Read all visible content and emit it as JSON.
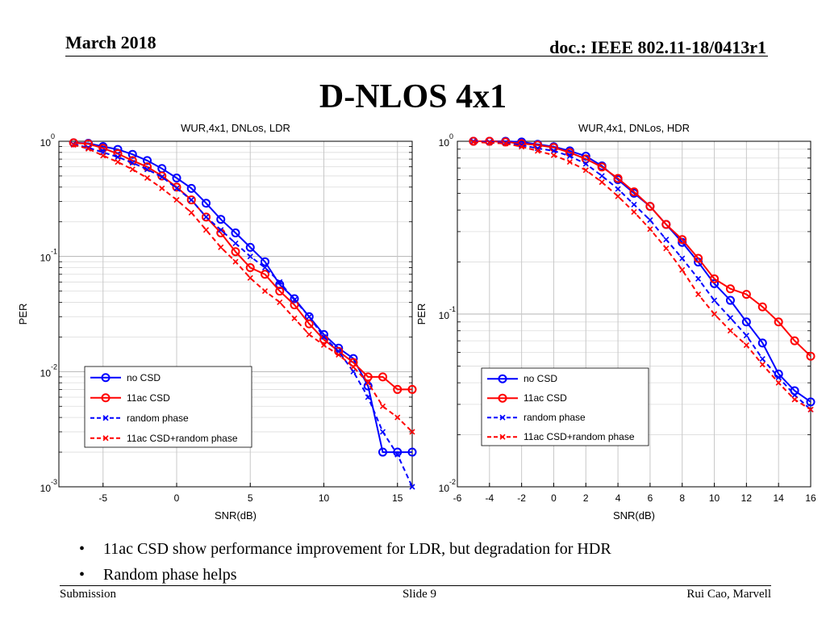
{
  "header": {
    "date": "March 2018",
    "doc_id": "doc.: IEEE 802.11-18/0413r1"
  },
  "slide_title": "D-NLOS 4x1",
  "bullets": [
    {
      "mark": "•",
      "text": "11ac CSD show performance improvement for LDR, but degradation for HDR"
    },
    {
      "mark": "•",
      "text": "Random phase helps"
    }
  ],
  "footer": {
    "left": "Submission",
    "center": "Slide 9",
    "right": "Rui Cao, Marvell"
  },
  "colors": {
    "blue": "#0000ff",
    "red": "#ff0000",
    "grid": "#c8c8c8"
  },
  "chart_data": [
    {
      "type": "line",
      "title": "WUR,4x1, DNLos, LDR",
      "xlabel": "SNR(dB)",
      "ylabel": "PER",
      "yscale": "log",
      "xlim": [
        -8,
        16
      ],
      "ylim_exp": [
        -3,
        0
      ],
      "xticks": [
        -5,
        0,
        5,
        10,
        15
      ],
      "xtick_labels": [
        "-5",
        "0",
        "5",
        "10",
        "15"
      ],
      "yticks_exp": [
        0,
        -1,
        -2,
        -3
      ],
      "ytick_labels": [
        {
          "base": "10",
          "exp": "0"
        },
        {
          "base": "10",
          "exp": "-1"
        },
        {
          "base": "10",
          "exp": "-2"
        },
        {
          "base": "10",
          "exp": "-3"
        }
      ],
      "grid": true,
      "legend_location": "lower-left",
      "x": [
        -7,
        -6,
        -5,
        -4,
        -3,
        -2,
        -1,
        0,
        1,
        2,
        3,
        4,
        5,
        6,
        7,
        8,
        9,
        10,
        11,
        12,
        13,
        14,
        15,
        16
      ],
      "series": [
        {
          "name": "no CSD",
          "color": "blue",
          "style": "solid",
          "marker": "circle",
          "values": [
            0.97,
            0.96,
            0.9,
            0.85,
            0.77,
            0.68,
            0.58,
            0.48,
            0.39,
            0.29,
            0.21,
            0.16,
            0.12,
            0.09,
            0.057,
            0.043,
            0.03,
            0.021,
            0.016,
            0.013,
            0.0075,
            0.002,
            0.002,
            0.002
          ]
        },
        {
          "name": "11ac CSD",
          "color": "red",
          "style": "solid",
          "marker": "circle",
          "values": [
            0.97,
            0.95,
            0.87,
            0.78,
            0.68,
            0.6,
            0.5,
            0.4,
            0.31,
            0.22,
            0.16,
            0.11,
            0.08,
            0.07,
            0.05,
            0.038,
            0.026,
            0.019,
            0.015,
            0.012,
            0.009,
            0.009,
            0.007,
            0.007
          ]
        },
        {
          "name": "random phase",
          "color": "blue",
          "style": "dashed",
          "marker": "x",
          "values": [
            0.94,
            0.88,
            0.8,
            0.73,
            0.65,
            0.57,
            0.49,
            0.39,
            0.31,
            0.22,
            0.17,
            0.13,
            0.1,
            0.08,
            0.06,
            0.042,
            0.03,
            0.02,
            0.015,
            0.01,
            0.006,
            0.003,
            0.0019,
            0.001
          ]
        },
        {
          "name": "11ac CSD+random phase",
          "color": "red",
          "style": "dashed",
          "marker": "x",
          "values": [
            0.93,
            0.86,
            0.75,
            0.66,
            0.57,
            0.48,
            0.39,
            0.31,
            0.24,
            0.17,
            0.12,
            0.09,
            0.065,
            0.05,
            0.04,
            0.029,
            0.021,
            0.017,
            0.014,
            0.011,
            0.008,
            0.005,
            0.004,
            0.003
          ]
        }
      ]
    },
    {
      "type": "line",
      "title": "WUR,4x1, DNLos, HDR",
      "xlabel": "SNR(dB)",
      "ylabel": "PER",
      "yscale": "log",
      "xlim": [
        -6,
        16
      ],
      "ylim_exp": [
        -2,
        0
      ],
      "xticks": [
        -6,
        -4,
        -2,
        0,
        2,
        4,
        6,
        8,
        10,
        12,
        14,
        16
      ],
      "xtick_labels": [
        "-6",
        "-4",
        "-2",
        "0",
        "2",
        "4",
        "6",
        "8",
        "10",
        "12",
        "14",
        "16"
      ],
      "yticks_exp": [
        0,
        -1,
        -2
      ],
      "ytick_labels": [
        {
          "base": "10",
          "exp": "0"
        },
        {
          "base": "10",
          "exp": "-1"
        },
        {
          "base": "10",
          "exp": "-2"
        }
      ],
      "grid": true,
      "legend_location": "lower-left",
      "x": [
        -5,
        -4,
        -3,
        -2,
        -1,
        0,
        1,
        2,
        3,
        4,
        5,
        6,
        7,
        8,
        9,
        10,
        11,
        12,
        13,
        14,
        15,
        16
      ],
      "series": [
        {
          "name": "no CSD",
          "color": "blue",
          "style": "solid",
          "marker": "circle",
          "values": [
            1.0,
            1.0,
            1.0,
            0.99,
            0.96,
            0.93,
            0.88,
            0.82,
            0.72,
            0.6,
            0.5,
            0.42,
            0.33,
            0.26,
            0.2,
            0.15,
            0.12,
            0.09,
            0.068,
            0.045,
            0.036,
            0.031
          ]
        },
        {
          "name": "11ac CSD",
          "color": "red",
          "style": "solid",
          "marker": "circle",
          "values": [
            1.0,
            1.0,
            0.99,
            0.97,
            0.95,
            0.92,
            0.86,
            0.79,
            0.71,
            0.61,
            0.51,
            0.42,
            0.33,
            0.27,
            0.21,
            0.16,
            0.14,
            0.13,
            0.11,
            0.09,
            0.07,
            0.057
          ]
        },
        {
          "name": "random phase",
          "color": "blue",
          "style": "dashed",
          "marker": "x",
          "values": [
            1.0,
            0.99,
            0.98,
            0.95,
            0.91,
            0.88,
            0.82,
            0.74,
            0.63,
            0.53,
            0.43,
            0.35,
            0.27,
            0.21,
            0.16,
            0.12,
            0.095,
            0.075,
            0.055,
            0.043,
            0.034,
            0.028
          ]
        },
        {
          "name": "11ac CSD+random phase",
          "color": "red",
          "style": "dashed",
          "marker": "x",
          "values": [
            0.99,
            0.98,
            0.97,
            0.93,
            0.88,
            0.83,
            0.76,
            0.68,
            0.58,
            0.48,
            0.39,
            0.31,
            0.24,
            0.18,
            0.13,
            0.1,
            0.08,
            0.066,
            0.051,
            0.04,
            0.032,
            0.028
          ]
        }
      ]
    }
  ]
}
